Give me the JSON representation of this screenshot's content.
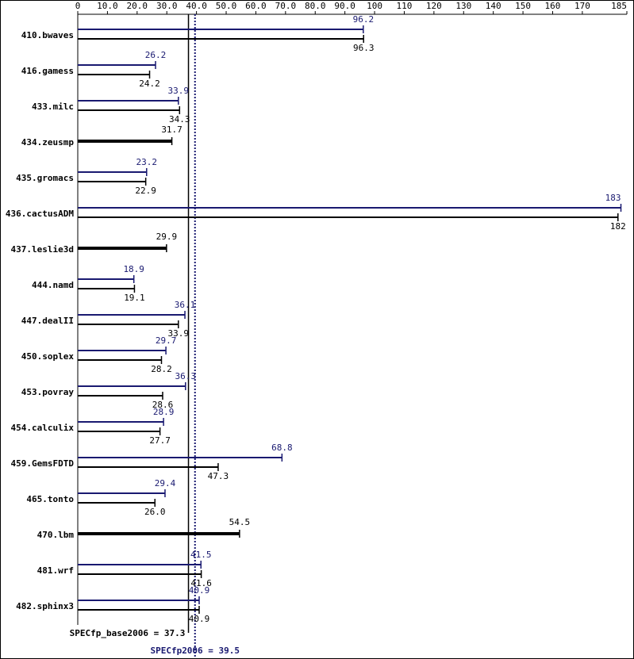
{
  "chart_data": {
    "type": "hbar",
    "categories": [
      "410.bwaves",
      "416.gamess",
      "433.milc",
      "434.zeusmp",
      "435.gromacs",
      "436.cactusADM",
      "437.leslie3d",
      "444.namd",
      "447.dealII",
      "450.soplex",
      "453.povray",
      "454.calculix",
      "459.GemsFDTD",
      "465.tonto",
      "470.lbm",
      "481.wrf",
      "482.sphinx3"
    ],
    "series": [
      {
        "color": "#191970",
        "values": [
          96.2,
          26.2,
          33.9,
          null,
          23.2,
          183,
          null,
          18.9,
          36.1,
          29.7,
          36.3,
          28.9,
          68.8,
          29.4,
          null,
          41.5,
          40.9
        ],
        "value_labels": [
          "96.2",
          "26.2",
          "33.9",
          null,
          "23.2",
          "183",
          null,
          "18.9",
          "36.1",
          "29.7",
          "36.3",
          "28.9",
          "68.8",
          "29.4",
          null,
          "41.5",
          "40.9"
        ]
      },
      {
        "color": "#000000",
        "values": [
          96.3,
          24.2,
          34.3,
          31.7,
          22.9,
          182,
          29.9,
          19.1,
          33.9,
          28.2,
          28.6,
          27.7,
          47.3,
          26.0,
          54.5,
          41.6,
          40.9
        ],
        "value_labels": [
          "96.3",
          "24.2",
          "34.3",
          "31.7",
          "22.9",
          "182",
          "29.9",
          "19.1",
          "33.9",
          "28.2",
          "28.6",
          "27.7",
          "47.3",
          "26.0",
          "54.5",
          "41.6",
          "40.9"
        ]
      }
    ],
    "xlim": [
      0,
      185
    ],
    "xticks": [
      0,
      {
        "value": 10,
        "label": "10.0"
      },
      {
        "value": 20,
        "label": "20.0"
      },
      {
        "value": 30,
        "label": "30.0"
      },
      {
        "value": 40,
        "label": "40.0"
      },
      {
        "value": 50,
        "label": "50.0"
      },
      {
        "value": 60,
        "label": "60.0"
      },
      {
        "value": 70,
        "label": "70.0"
      },
      {
        "value": 80,
        "label": "80.0"
      },
      {
        "value": 90,
        "label": "90.0"
      },
      100,
      110,
      120,
      130,
      140,
      150,
      160,
      170,
      185
    ],
    "reference_lines": [
      {
        "label": "SPECfp_base2006 = 37.3",
        "value": 37.3,
        "color": "#000000",
        "style": "solid"
      },
      {
        "label": "SPECfp2006 = 39.5",
        "value": 39.5,
        "color": "#191970",
        "style": "dotted"
      }
    ]
  }
}
